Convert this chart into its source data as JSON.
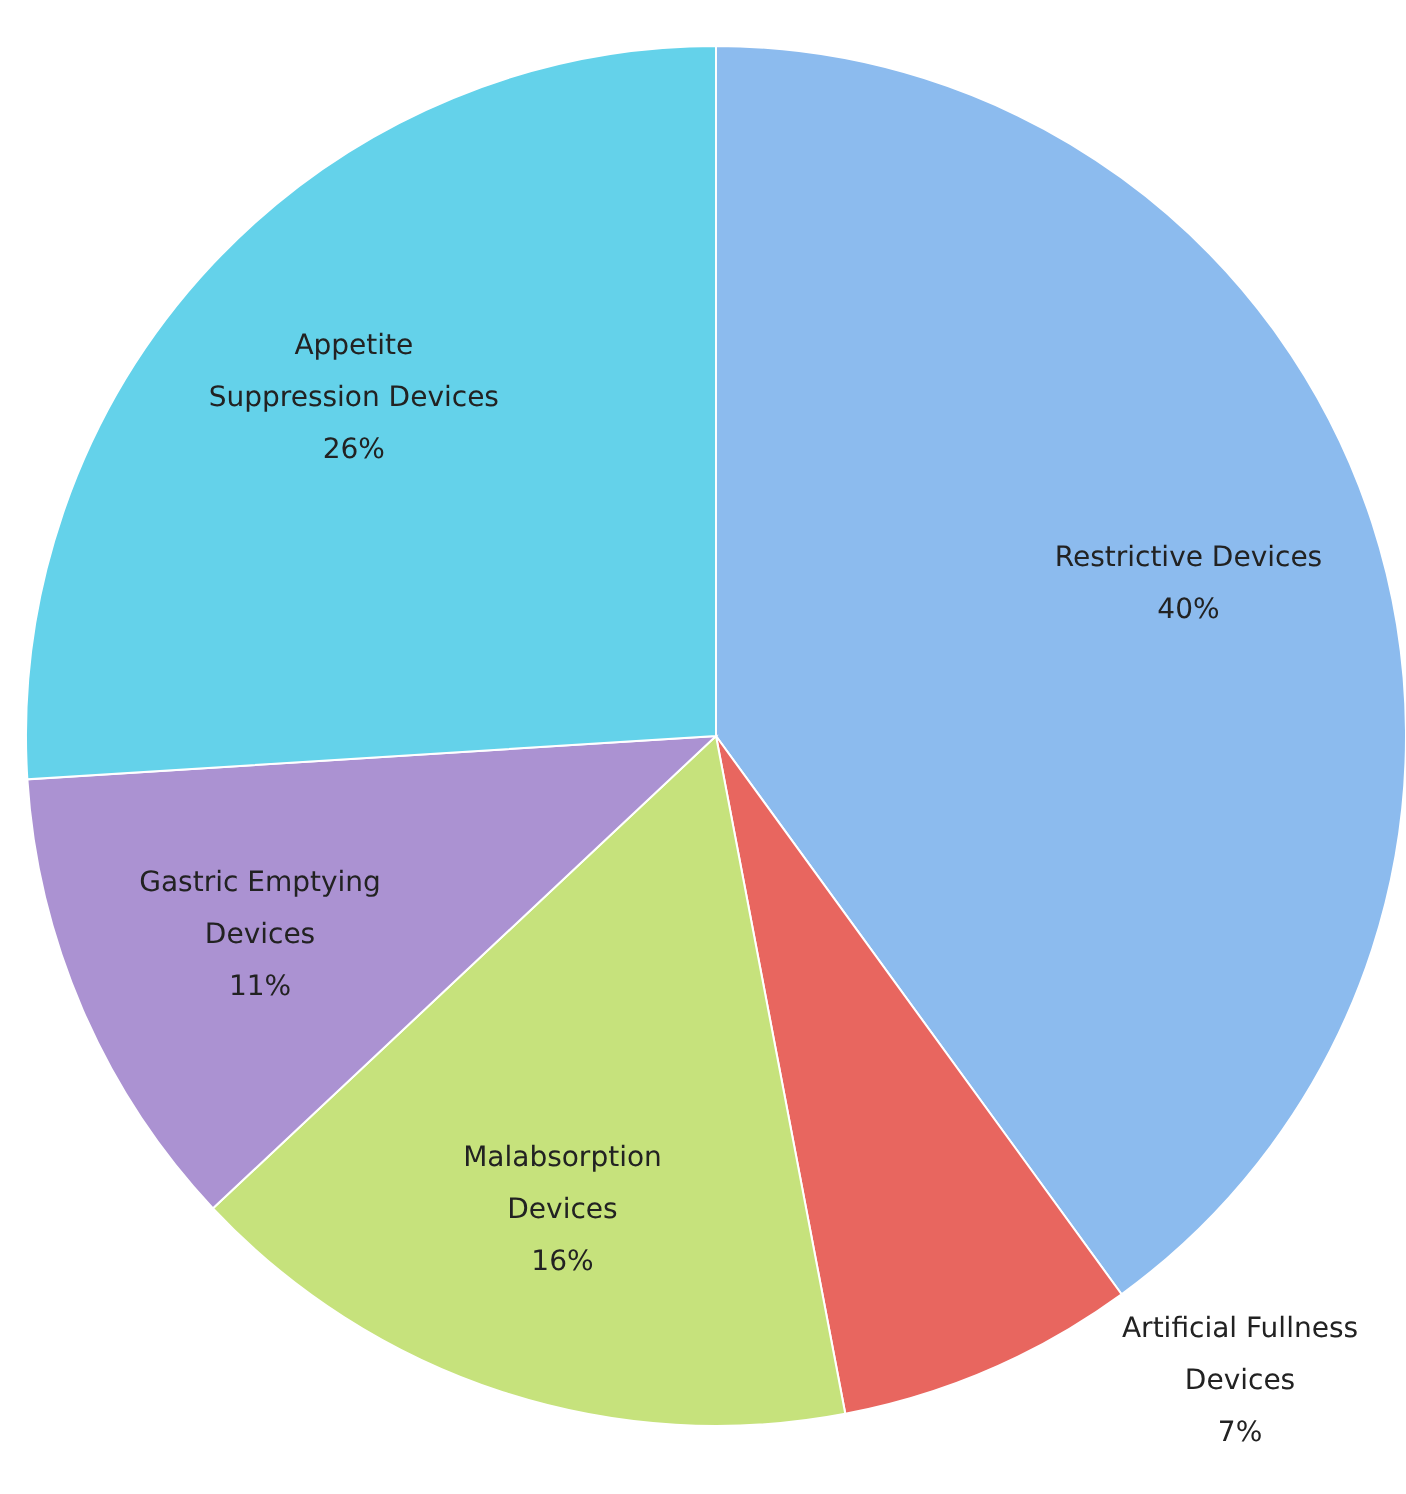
{
  "chart_data": {
    "type": "pie",
    "categories": [
      "Restrictive Devices",
      "Artificial Fullness Devices",
      "Malabsorption Devices",
      "Gastric Emptying Devices",
      "Appetite Suppression Devices"
    ],
    "values": [
      40,
      7,
      16,
      11,
      26
    ],
    "value_labels": [
      "40%",
      "7%",
      "16%",
      "11%",
      "26%"
    ],
    "colors": [
      "#8cbbee",
      "#e8665f",
      "#c6e27c",
      "#ab92d2",
      "#64d2ea"
    ]
  }
}
